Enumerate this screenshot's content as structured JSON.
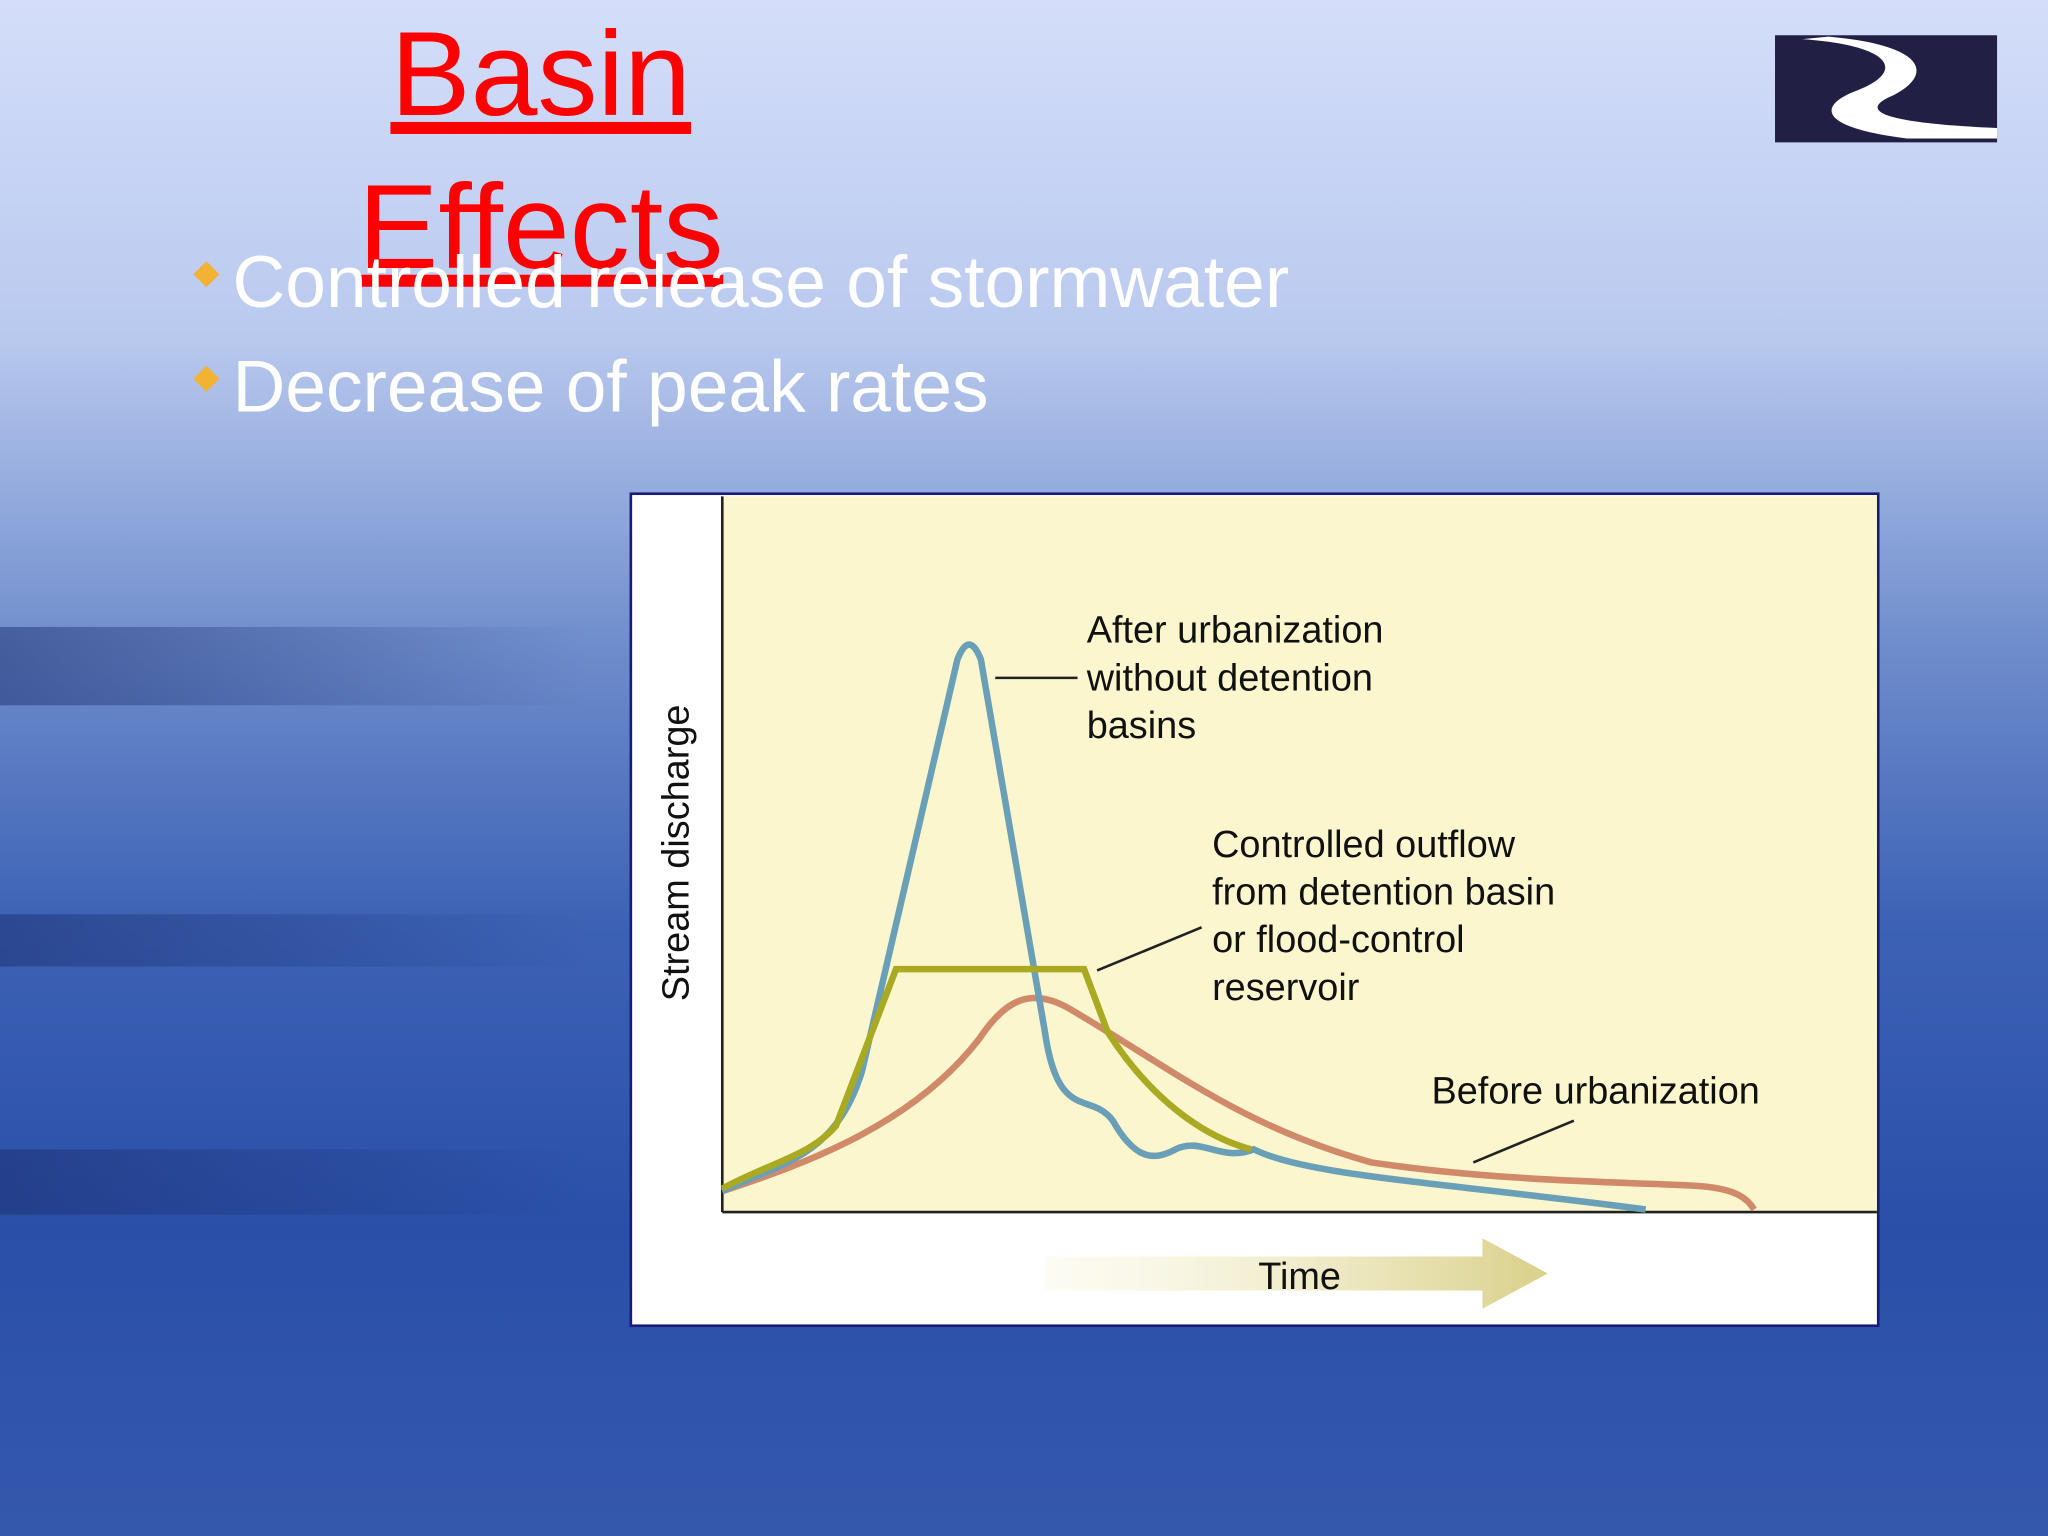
{
  "slide": {
    "title_lines": [
      "Basin",
      "Effects"
    ],
    "bullets": [
      "Controlled release of stormwater",
      "Decrease of peak rates"
    ]
  },
  "figure": {
    "y_axis_label": "Stream discharge",
    "x_axis_label": "Time",
    "annotations": [
      {
        "lines": [
          "After urbanization",
          "without detention",
          "basins"
        ]
      },
      {
        "lines": [
          "Controlled outflow",
          "from detention basin",
          "or flood-control",
          "reservoir"
        ]
      },
      {
        "lines": [
          "Before urbanization"
        ]
      }
    ]
  }
}
